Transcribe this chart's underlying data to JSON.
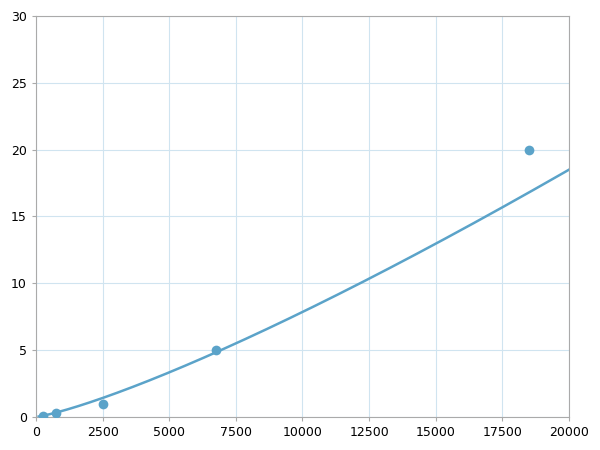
{
  "x_points": [
    250,
    750,
    2500,
    6750,
    18500
  ],
  "y_points": [
    0.1,
    0.3,
    1.0,
    5.0,
    20.0
  ],
  "line_color": "#5ba3c9",
  "marker_color": "#5ba3c9",
  "marker_size": 7,
  "line_width": 1.8,
  "xlim": [
    0,
    20000
  ],
  "ylim": [
    0,
    30
  ],
  "xticks": [
    0,
    2500,
    5000,
    7500,
    10000,
    12500,
    15000,
    17500,
    20000
  ],
  "yticks": [
    0,
    5,
    10,
    15,
    20,
    25,
    30
  ],
  "grid_color": "#d0e4f0",
  "background_color": "#ffffff",
  "spine_color": "#aaaaaa",
  "figsize": [
    6.0,
    4.5
  ],
  "dpi": 100
}
